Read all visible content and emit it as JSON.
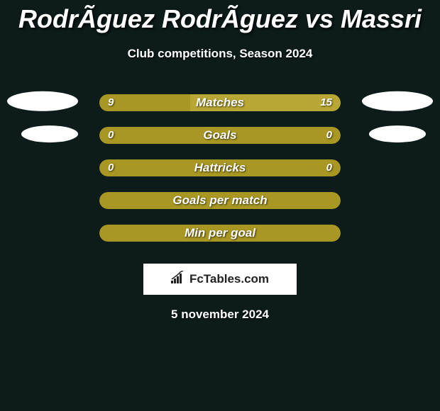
{
  "title": "RodrÃ­guez RodrÃ­guez vs Massri",
  "subtitle": "Club competitions, Season 2024",
  "date": "5 november 2024",
  "logo_text": "FcTables.com",
  "colors": {
    "bg": "#0d1b1b",
    "bar_accent": "#a89723",
    "bar_accent_light": "#b8a735",
    "avatar": "#ffffff",
    "text": "#ffffff",
    "logo_bg": "#ffffff",
    "logo_text": "#222222"
  },
  "rows": [
    {
      "label": "Matches",
      "left_val": "9",
      "right_val": "15",
      "left_pct": 37.5,
      "right_pct": 62.5,
      "show_avatars": true,
      "avatar_size": "large",
      "show_vals": true,
      "left_color": "#a89723",
      "right_color": "#b8a735",
      "single_fill": false
    },
    {
      "label": "Goals",
      "left_val": "0",
      "right_val": "0",
      "left_pct": 0,
      "right_pct": 0,
      "show_avatars": true,
      "avatar_size": "small",
      "show_vals": true,
      "left_color": "#a89723",
      "right_color": "#a89723",
      "single_fill": true,
      "fill_color": "#a89723"
    },
    {
      "label": "Hattricks",
      "left_val": "0",
      "right_val": "0",
      "left_pct": 0,
      "right_pct": 0,
      "show_avatars": false,
      "show_vals": true,
      "single_fill": true,
      "fill_color": "#a89723"
    },
    {
      "label": "Goals per match",
      "left_val": "",
      "right_val": "",
      "show_avatars": false,
      "show_vals": false,
      "single_fill": true,
      "fill_color": "#a89723"
    },
    {
      "label": "Min per goal",
      "left_val": "",
      "right_val": "",
      "show_avatars": false,
      "show_vals": false,
      "single_fill": true,
      "fill_color": "#a89723"
    }
  ]
}
